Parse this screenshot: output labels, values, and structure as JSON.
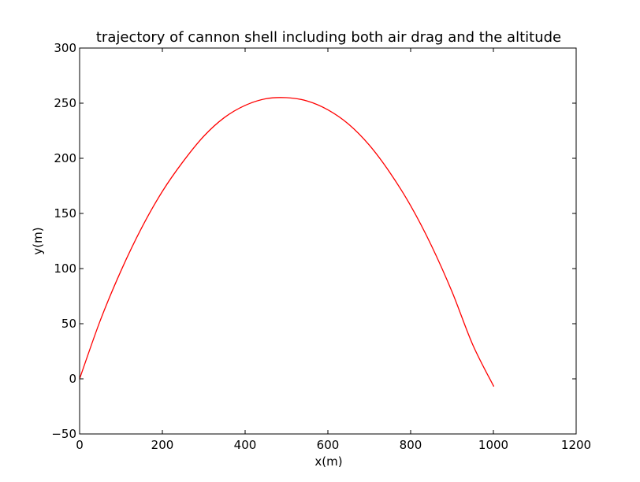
{
  "chart_data": {
    "type": "line",
    "title": "trajectory of cannon shell including both air drag and the altitude",
    "xlabel": "x(m)",
    "ylabel": "y(m)",
    "xlim": [
      0,
      1200
    ],
    "ylim": [
      -50,
      300
    ],
    "xticks": [
      0,
      200,
      400,
      600,
      800,
      1000,
      1200
    ],
    "yticks": [
      -50,
      0,
      50,
      100,
      150,
      200,
      250,
      300
    ],
    "xtick_labels": [
      "0",
      "200",
      "400",
      "600",
      "800",
      "1000",
      "1200"
    ],
    "ytick_labels": [
      "−50",
      "0",
      "50",
      "100",
      "150",
      "200",
      "250",
      "300"
    ],
    "grid": false,
    "series": [
      {
        "color": "#ff0000",
        "x": [
          0,
          50,
          100,
          150,
          200,
          250,
          300,
          350,
          400,
          450,
          500,
          550,
          600,
          650,
          700,
          750,
          800,
          850,
          900,
          950,
          1001
        ],
        "y": [
          0,
          53,
          98,
          137,
          170,
          197,
          220,
          237,
          248,
          254,
          255,
          252,
          244,
          231,
          212,
          187,
          157,
          121,
          79,
          31,
          -7
        ]
      }
    ]
  }
}
